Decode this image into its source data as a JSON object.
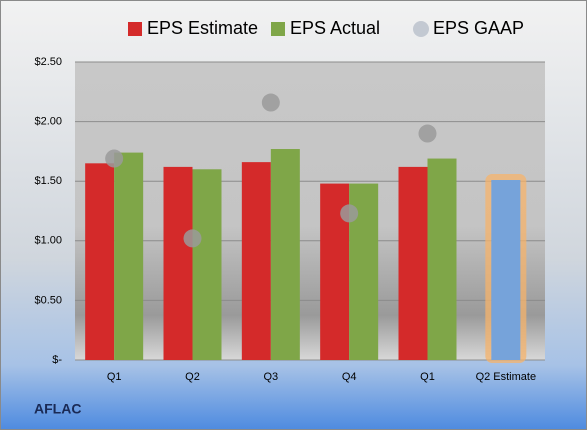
{
  "chart_data": {
    "type": "bar",
    "categories": [
      "Q1",
      "Q2",
      "Q3",
      "Q4",
      "Q1",
      "Q2 Estimate"
    ],
    "series": [
      {
        "name": "EPS Estimate",
        "color": "#d42a2a",
        "values": [
          1.65,
          1.62,
          1.66,
          1.48,
          1.62,
          1.51
        ],
        "colors": [
          "#d42a2a",
          "#d42a2a",
          "#d42a2a",
          "#d42a2a",
          "#d42a2a",
          "#76a3da"
        ],
        "glow": [
          null,
          null,
          null,
          null,
          null,
          "#f6b36b"
        ]
      },
      {
        "name": "EPS Actual",
        "color": "#7fa648",
        "values": [
          1.74,
          1.6,
          1.77,
          1.48,
          1.69,
          null
        ]
      },
      {
        "name": "EPS GAAP",
        "type": "scatter",
        "color": "#9a9a9a",
        "values": [
          1.69,
          1.02,
          2.16,
          1.23,
          1.9,
          null
        ]
      }
    ],
    "ylim": [
      0,
      2.5
    ],
    "yticks": [
      {
        "value": 0,
        "label": "$-"
      },
      {
        "value": 0.5,
        "label": "$0.50"
      },
      {
        "value": 1,
        "label": "$1.00"
      },
      {
        "value": 1.5,
        "label": "$1.50"
      },
      {
        "value": 2,
        "label": "$2.00"
      },
      {
        "value": 2.5,
        "label": "$2.50"
      }
    ],
    "grid": true,
    "footer": "AFLAC"
  }
}
